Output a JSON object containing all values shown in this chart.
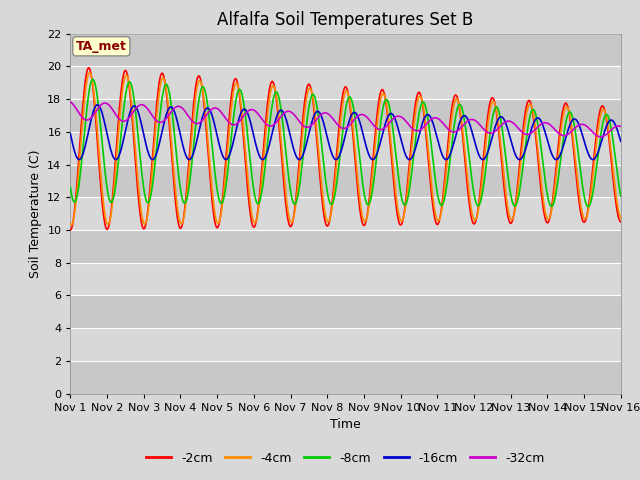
{
  "title": "Alfalfa Soil Temperatures Set B",
  "xlabel": "Time",
  "ylabel": "Soil Temperature (C)",
  "xlim": [
    0,
    15
  ],
  "ylim": [
    0,
    22
  ],
  "yticks": [
    0,
    2,
    4,
    6,
    8,
    10,
    12,
    14,
    16,
    18,
    20,
    22
  ],
  "xtick_labels": [
    "Nov 1",
    "Nov 2",
    "Nov 3",
    "Nov 4",
    "Nov 5",
    "Nov 6",
    "Nov 7",
    "Nov 8",
    "Nov 9",
    "Nov 10",
    "Nov 11",
    "Nov 12",
    "Nov 13",
    "Nov 14",
    "Nov 15",
    "Nov 16"
  ],
  "annotation_text": "TA_met",
  "annotation_box_color": "#ffffcc",
  "annotation_text_color": "#8b0000",
  "legend_labels": [
    "-2cm",
    "-4cm",
    "-8cm",
    "-16cm",
    "-32cm"
  ],
  "line_colors": [
    "#ff0000",
    "#ff8c00",
    "#00cc00",
    "#0000cd",
    "#cc00cc"
  ],
  "bg_color": "#d8d8d8",
  "plot_bg_color": "#d0d0d0",
  "band_light": "#d8d8d8",
  "band_dark": "#c8c8c8",
  "grid_color": "#ffffff",
  "title_fontsize": 12,
  "axis_label_fontsize": 9,
  "tick_fontsize": 8
}
